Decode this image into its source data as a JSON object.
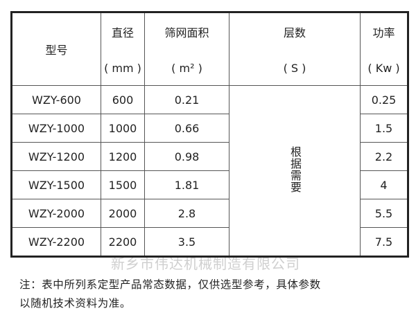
{
  "table": {
    "headers": [
      {
        "label": "型号",
        "unit": ""
      },
      {
        "label": "直径",
        "unit": "( mm )"
      },
      {
        "label": "筛网面积",
        "unit": "( m² )"
      },
      {
        "label": "层数",
        "unit": "( S )"
      },
      {
        "label": "功率",
        "unit": "( Kw )"
      }
    ],
    "rows": [
      {
        "model": "WZY-600",
        "diameter": "600",
        "area": "0.21",
        "power": "0.25"
      },
      {
        "model": "WZY-1000",
        "diameter": "1000",
        "area": "0.66",
        "power": "1.5"
      },
      {
        "model": "WZY-1200",
        "diameter": "1200",
        "area": "0.98",
        "power": "2.2"
      },
      {
        "model": "WZY-1500",
        "diameter": "1500",
        "area": "1.81",
        "power": "4"
      },
      {
        "model": "WZY-2000",
        "diameter": "2000",
        "area": "2.8",
        "power": "5.5"
      },
      {
        "model": "WZY-2200",
        "diameter": "2200",
        "area": "3.5",
        "power": "7.5"
      }
    ],
    "layers_value": "根据需要"
  },
  "note": {
    "line1": "注：表中所列系定型产品常态数据，仅供选型参考，具体参数",
    "line2": "以随机技术资料为准。"
  },
  "watermark": "新乡市伟达机械制造有限公司"
}
